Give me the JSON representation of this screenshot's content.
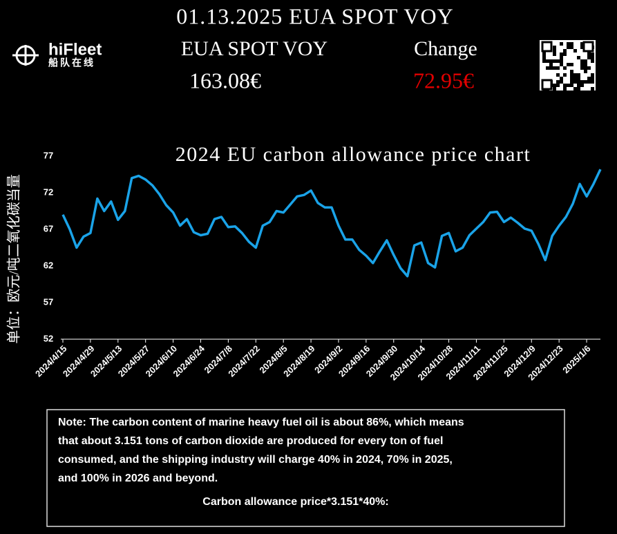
{
  "header": {
    "headline": "01.13.2025 EUA SPOT VOY",
    "label_left": "EUA SPOT VOY",
    "price": "163.08€",
    "label_right": "Change",
    "change": "72.95€",
    "brand": "hiFleet",
    "brand_sub": "船队在线"
  },
  "chart_data": {
    "type": "line",
    "title": "2024 EU carbon allowance price chart",
    "y_label": "单位：欧元/吨二氧化碳当量",
    "categories": [
      "2024/4/15",
      null,
      null,
      null,
      "2024/4/29",
      null,
      null,
      null,
      "2024/5/13",
      null,
      null,
      null,
      "2024/5/27",
      null,
      null,
      null,
      "2024/6/10",
      null,
      null,
      null,
      "2024/6/24",
      null,
      null,
      null,
      "2024/7/8",
      null,
      null,
      null,
      "2024/7/22",
      null,
      null,
      null,
      "2024/8/5",
      null,
      null,
      null,
      "2024/8/19",
      null,
      null,
      null,
      "2024/9/2",
      null,
      null,
      null,
      "2024/9/16",
      null,
      null,
      null,
      "2024/9/30",
      null,
      null,
      null,
      "2024/10/14",
      null,
      null,
      null,
      "2024/10/28",
      null,
      null,
      null,
      "2024/11/11",
      null,
      null,
      null,
      "2024/11/25",
      null,
      null,
      null,
      "2024/12/9",
      null,
      null,
      null,
      "2024/12/23",
      null,
      null,
      null,
      "2025/1/6",
      null,
      null
    ],
    "values": [
      69,
      67,
      64.5,
      66,
      66.5,
      71.2,
      69.5,
      70.8,
      68.3,
      69.5,
      74,
      74.3,
      73.8,
      73,
      71.8,
      70.3,
      69.3,
      67.5,
      68.4,
      66.6,
      66.2,
      66.4,
      68.4,
      68.7,
      67.3,
      67.4,
      66.5,
      65.3,
      64.5,
      67.5,
      68,
      69.5,
      69.3,
      70.4,
      71.5,
      71.7,
      72.3,
      70.6,
      70,
      70,
      67.5,
      65.6,
      65.6,
      64.2,
      63.4,
      62.4,
      64,
      65.5,
      63.5,
      61.7,
      60.6,
      64.8,
      65.2,
      62.4,
      61.8,
      66.1,
      66.5,
      64,
      64.5,
      66.2,
      67.1,
      68,
      69.3,
      69.4,
      68,
      68.6,
      67.9,
      67.1,
      66.8,
      65,
      62.8,
      66.1,
      67.5,
      68.7,
      70.5,
      73.2,
      71.5,
      73.2,
      75.2
    ],
    "color": "#1aa3e8",
    "ylim": [
      52,
      77
    ],
    "yticks": [
      52,
      57,
      62,
      67,
      72,
      77
    ],
    "grid": false
  },
  "note": {
    "lines": [
      "Note: The carbon content of marine heavy fuel oil is about 86%, which means",
      "that about 3.151 tons of carbon dioxide are produced for every ton of fuel",
      "consumed, and the shipping industry will charge 40% in 2024, 70% in 2025,",
      "and 100% in 2026 and beyond."
    ],
    "formula": "Carbon allowance price*3.151*40%:"
  }
}
